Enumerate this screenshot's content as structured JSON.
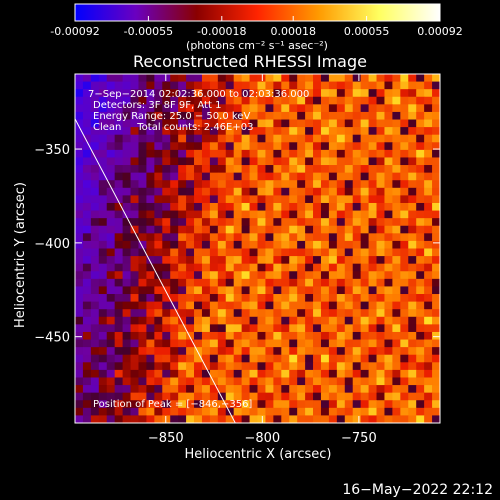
{
  "chart_data": {
    "type": "heatmap",
    "title": "Reconstructed RHESSI Image",
    "xlabel": "Heliocentric X (arcsec)",
    "ylabel": "Heliocentric Y (arcsec)",
    "xlim": [
      -897,
      -708
    ],
    "ylim": [
      -496,
      -310
    ],
    "x_ticks": [
      -850,
      -800,
      -750
    ],
    "x_tick_labels": [
      "−850",
      "−800",
      "−750"
    ],
    "y_ticks": [
      -350,
      -400,
      -450
    ],
    "y_tick_labels": [
      "−350",
      "−400",
      "−450"
    ],
    "colorbar": {
      "range": [
        -0.00092,
        0.00092
      ],
      "ticks": [
        -0.00092,
        -0.00055,
        -0.00018,
        0.00018,
        0.00055,
        0.00092
      ],
      "tick_labels": [
        "-0.00092",
        "-0.00055",
        "-0.00018",
        "0.00018",
        "0.00055",
        "0.00092"
      ],
      "unit": "(photons cm⁻² s⁻¹ asec⁻²)",
      "colors": [
        "#0000ff",
        "#6a00c0",
        "#8a0000",
        "#ff2400",
        "#ff9a00",
        "#ffff60",
        "#ffffff"
      ]
    },
    "annotations": [
      "7−Sep−2014 02:02:36.000 to 02:03:36.000",
      "Detectors: 3F 8F 9F, Att 1",
      "Energy Range: 25.0 − 50.0 keV",
      "Clean     Total counts: 2.46E+03"
    ],
    "peak_label": "Position of Peak = [−846,−356]",
    "peak": [
      -846,
      -356
    ],
    "limb": [
      [
        -899,
        -330
      ],
      [
        -814,
        -496
      ]
    ]
  },
  "footer": {
    "timestamp": "16−May−2022 22:12"
  }
}
